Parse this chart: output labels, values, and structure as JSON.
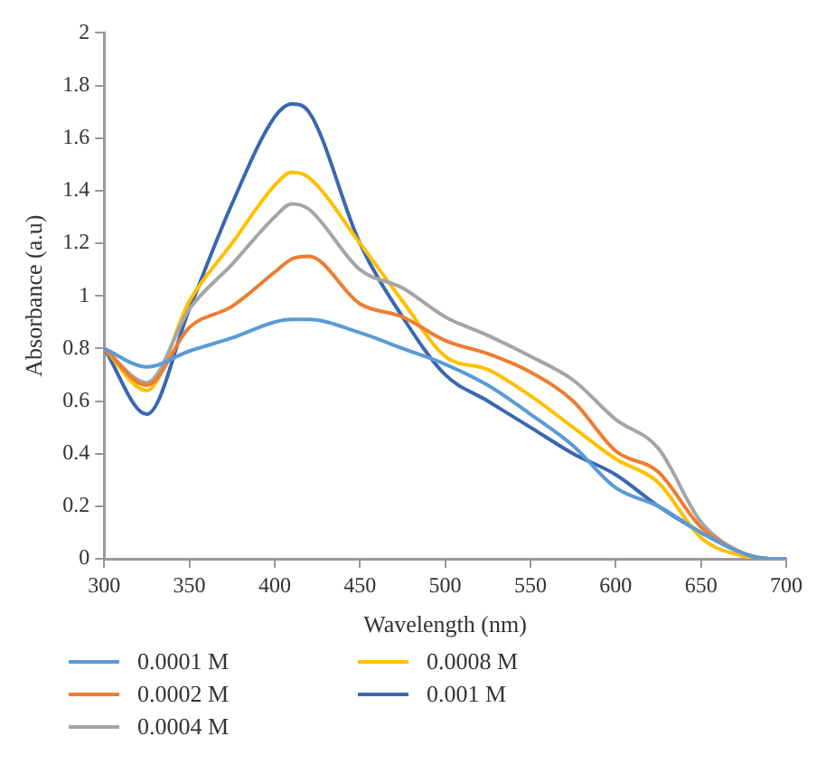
{
  "chart_data": {
    "type": "line",
    "xlabel": "Wavelength (nm)",
    "ylabel": "Absorbance (a.u)",
    "x": [
      300,
      325,
      350,
      375,
      400,
      410,
      420,
      450,
      475,
      500,
      525,
      550,
      575,
      600,
      625,
      650,
      675,
      690,
      700
    ],
    "series": [
      {
        "name": "0.0001 M",
        "color": "#5b9bd5",
        "values": [
          0.8,
          0.73,
          0.79,
          0.84,
          0.9,
          0.91,
          0.91,
          0.86,
          0.8,
          0.74,
          0.66,
          0.55,
          0.43,
          0.27,
          0.2,
          0.1,
          0.02,
          0,
          0
        ]
      },
      {
        "name": "0.0002 M",
        "color": "#ed7d31",
        "values": [
          0.8,
          0.66,
          0.88,
          0.96,
          1.09,
          1.14,
          1.15,
          0.97,
          0.92,
          0.83,
          0.78,
          0.71,
          0.6,
          0.41,
          0.33,
          0.12,
          0.02,
          0,
          0
        ]
      },
      {
        "name": "0.0004 M",
        "color": "#a5a5a5",
        "values": [
          0.8,
          0.67,
          0.95,
          1.12,
          1.3,
          1.35,
          1.33,
          1.1,
          1.03,
          0.92,
          0.85,
          0.77,
          0.68,
          0.53,
          0.42,
          0.14,
          0.02,
          0,
          0
        ]
      },
      {
        "name": "0.0008 M",
        "color": "#ffc000",
        "values": [
          0.8,
          0.64,
          0.98,
          1.2,
          1.42,
          1.47,
          1.45,
          1.2,
          0.98,
          0.77,
          0.72,
          0.62,
          0.5,
          0.38,
          0.29,
          0.08,
          0.01,
          0,
          0
        ]
      },
      {
        "name": "0.001 M",
        "color": "#3a67b1",
        "values": [
          0.8,
          0.55,
          0.95,
          1.35,
          1.68,
          1.73,
          1.7,
          1.2,
          0.92,
          0.7,
          0.6,
          0.5,
          0.4,
          0.32,
          0.2,
          0.1,
          0.02,
          0,
          0
        ]
      }
    ],
    "xlim": [
      300,
      700
    ],
    "xticks": [
      300,
      350,
      400,
      450,
      500,
      550,
      600,
      650,
      700
    ],
    "ylim": [
      0,
      2
    ],
    "yticks": [
      0,
      0.2,
      0.4,
      0.6,
      0.8,
      1,
      1.2,
      1.4,
      1.6,
      1.8,
      2
    ],
    "grid": false,
    "legend": "bottom",
    "marker": "none",
    "line_style": "solid"
  }
}
